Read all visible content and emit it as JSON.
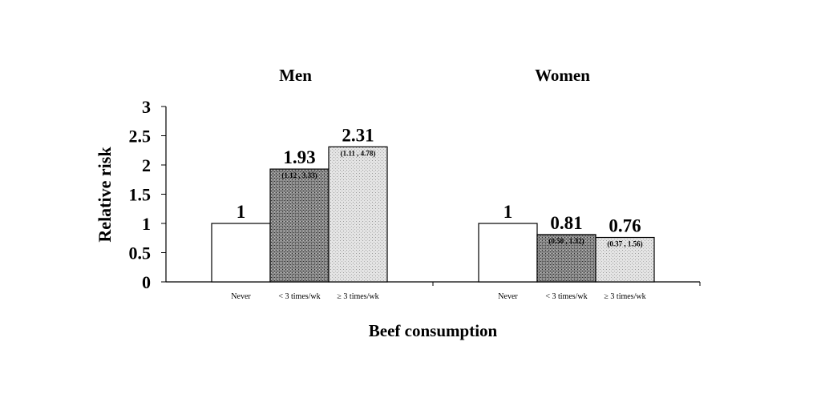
{
  "chart_data": {
    "type": "bar",
    "ylabel": "Relative  risk",
    "xlabel": "Beef  consumption",
    "ylim": [
      0,
      3
    ],
    "yticks": [
      "0",
      "0.5",
      "1",
      "1.5",
      "2",
      "2.5",
      "3"
    ],
    "categories": [
      "Never",
      "< 3 times/wk",
      "≥ 3 times/wk"
    ],
    "groups": [
      {
        "name": "Men",
        "values": [
          1,
          1.93,
          2.31
        ],
        "value_labels": [
          "1",
          "1.93",
          "2.31"
        ],
        "ci_labels": [
          "",
          "(1.12 , 3.33)",
          "(1.11 , 4.78)"
        ]
      },
      {
        "name": "Women",
        "values": [
          1,
          0.81,
          0.76
        ],
        "value_labels": [
          "1",
          "0.81",
          "0.76"
        ],
        "ci_labels": [
          "",
          "(0.50 , 1.32)",
          "(0.37 , 1.56)"
        ]
      }
    ],
    "fills": [
      "white",
      "dark-stipple",
      "light-stipple"
    ],
    "grid": false,
    "legend": "none"
  }
}
